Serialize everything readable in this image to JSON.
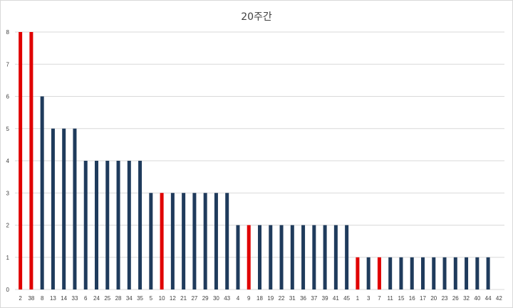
{
  "chart_data": {
    "type": "bar",
    "title": "20주간",
    "xlabel": "",
    "ylabel": "",
    "ylim": [
      0,
      8
    ],
    "yticks": [
      0,
      1,
      2,
      3,
      4,
      5,
      6,
      7,
      8
    ],
    "grid": true,
    "legend": "none",
    "categories": [
      "2",
      "38",
      "8",
      "13",
      "14",
      "33",
      "6",
      "24",
      "25",
      "28",
      "34",
      "35",
      "5",
      "10",
      "12",
      "21",
      "27",
      "29",
      "30",
      "43",
      "4",
      "9",
      "18",
      "19",
      "22",
      "31",
      "36",
      "37",
      "39",
      "41",
      "45",
      "1",
      "3",
      "7",
      "11",
      "15",
      "16",
      "17",
      "20",
      "23",
      "26",
      "32",
      "40",
      "44",
      "42"
    ],
    "values": [
      8,
      8,
      6,
      5,
      5,
      5,
      4,
      4,
      4,
      4,
      4,
      4,
      3,
      3,
      3,
      3,
      3,
      3,
      3,
      3,
      2,
      2,
      2,
      2,
      2,
      2,
      2,
      2,
      2,
      2,
      2,
      1,
      1,
      1,
      1,
      1,
      1,
      1,
      1,
      1,
      1,
      1,
      1,
      1,
      0
    ],
    "highlighted": [
      "2",
      "38",
      "10",
      "9",
      "1",
      "7"
    ],
    "colors": {
      "default": "#1f3b5c",
      "highlight": "#e00000",
      "grid": "#d9d9d9"
    }
  }
}
